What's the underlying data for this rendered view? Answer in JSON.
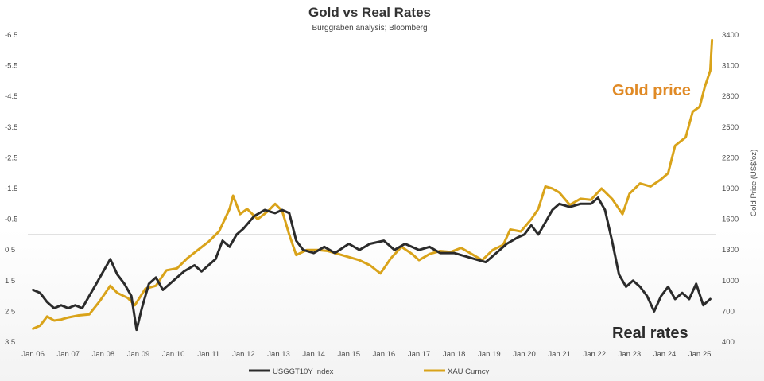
{
  "chart_data": {
    "type": "line",
    "title": "Gold  vs Real Rates",
    "subtitle": "Burggraben analysis; Bloomberg",
    "ylabel": "",
    "y2label": "Gold Price (US$/oz)",
    "xlabel": "",
    "left_axis": {
      "inverted": true,
      "ylim": [
        -6.5,
        3.5
      ],
      "ticks": [
        -6.5,
        -5.5,
        -4.5,
        -3.5,
        -2.5,
        -1.5,
        -0.5,
        0.5,
        1.5,
        2.5,
        3.5
      ],
      "tick_labels": [
        "-6.5",
        "-5.5",
        "-4.5",
        "-3.5",
        "-2.5",
        "-1.5",
        "-0.5",
        "0.5",
        "1.5",
        "2.5",
        "3.5"
      ],
      "zero_line": 0
    },
    "right_axis": {
      "ylim": [
        400,
        3400
      ],
      "ticks": [
        400,
        700,
        1000,
        1300,
        1600,
        1900,
        2200,
        2500,
        2800,
        3100,
        3400
      ],
      "tick_labels": [
        "400",
        "700",
        "1000",
        "1300",
        "1600",
        "1900",
        "2200",
        "2500",
        "2800",
        "3100",
        "3400"
      ]
    },
    "x_ticks": [
      2006,
      2007,
      2008,
      2009,
      2010,
      2011,
      2012,
      2013,
      2014,
      2015,
      2016,
      2017,
      2018,
      2019,
      2020,
      2021,
      2022,
      2023,
      2024,
      2025
    ],
    "x_tick_labels": [
      "Jan 06",
      "Jan 07",
      "Jan 08",
      "Jan 09",
      "Jan 10",
      "Jan 11",
      "Jan 12",
      "Jan 13",
      "Jan 14",
      "Jan 15",
      "Jan 16",
      "Jan 17",
      "Jan 18",
      "Jan 19",
      "Jan 20",
      "Jan 21",
      "Jan 22",
      "Jan 23",
      "Jan 24",
      "Jan 25"
    ],
    "xlim": [
      2005.85,
      2025.45
    ],
    "series": [
      {
        "name": "USGGT10Y Index",
        "axis": "left",
        "color": "#2b2b2b",
        "x": [
          2006.0,
          2006.2,
          2006.4,
          2006.6,
          2006.8,
          2007.0,
          2007.2,
          2007.4,
          2007.6,
          2007.8,
          2008.0,
          2008.2,
          2008.4,
          2008.6,
          2008.8,
          2008.95,
          2009.1,
          2009.3,
          2009.5,
          2009.7,
          2010.0,
          2010.3,
          2010.6,
          2010.8,
          2011.0,
          2011.2,
          2011.4,
          2011.6,
          2011.8,
          2012.0,
          2012.3,
          2012.6,
          2012.9,
          2013.1,
          2013.3,
          2013.5,
          2013.7,
          2014.0,
          2014.3,
          2014.6,
          2015.0,
          2015.3,
          2015.6,
          2016.0,
          2016.3,
          2016.6,
          2017.0,
          2017.3,
          2017.6,
          2018.0,
          2018.3,
          2018.6,
          2018.9,
          2019.2,
          2019.5,
          2019.8,
          2020.0,
          2020.2,
          2020.4,
          2020.6,
          2020.8,
          2021.0,
          2021.3,
          2021.6,
          2021.9,
          2022.1,
          2022.3,
          2022.5,
          2022.7,
          2022.9,
          2023.1,
          2023.3,
          2023.5,
          2023.7,
          2023.9,
          2024.1,
          2024.3,
          2024.5,
          2024.7,
          2024.9,
          2025.1,
          2025.3
        ],
        "values": [
          1.8,
          1.9,
          2.2,
          2.4,
          2.3,
          2.4,
          2.3,
          2.4,
          2.0,
          1.6,
          1.2,
          0.8,
          1.3,
          1.6,
          2.0,
          3.1,
          2.4,
          1.6,
          1.4,
          1.8,
          1.5,
          1.2,
          1.0,
          1.2,
          1.0,
          0.8,
          0.2,
          0.4,
          0.0,
          -0.2,
          -0.6,
          -0.8,
          -0.7,
          -0.8,
          -0.7,
          0.2,
          0.5,
          0.6,
          0.4,
          0.6,
          0.3,
          0.5,
          0.3,
          0.2,
          0.5,
          0.3,
          0.5,
          0.4,
          0.6,
          0.6,
          0.7,
          0.8,
          0.9,
          0.6,
          0.3,
          0.1,
          0.0,
          -0.3,
          0.0,
          -0.4,
          -0.8,
          -1.0,
          -0.9,
          -1.0,
          -1.0,
          -1.2,
          -0.8,
          0.2,
          1.3,
          1.7,
          1.5,
          1.7,
          2.0,
          2.5,
          2.0,
          1.7,
          2.1,
          1.9,
          2.1,
          1.6,
          2.3,
          2.1
        ]
      },
      {
        "name": "XAU Curncy",
        "axis": "right",
        "color": "#d9a31a",
        "x": [
          2006.0,
          2006.2,
          2006.4,
          2006.6,
          2006.8,
          2007.0,
          2007.3,
          2007.6,
          2007.9,
          2008.2,
          2008.4,
          2008.7,
          2008.9,
          2009.2,
          2009.5,
          2009.8,
          2010.1,
          2010.4,
          2010.7,
          2011.0,
          2011.3,
          2011.6,
          2011.7,
          2011.9,
          2012.1,
          2012.4,
          2012.7,
          2012.9,
          2013.1,
          2013.3,
          2013.5,
          2013.8,
          2014.1,
          2014.4,
          2014.7,
          2015.0,
          2015.3,
          2015.6,
          2015.9,
          2016.2,
          2016.5,
          2016.8,
          2017.0,
          2017.3,
          2017.6,
          2017.9,
          2018.2,
          2018.5,
          2018.8,
          2019.1,
          2019.4,
          2019.6,
          2019.9,
          2020.2,
          2020.4,
          2020.6,
          2020.8,
          2021.0,
          2021.3,
          2021.6,
          2021.9,
          2022.2,
          2022.5,
          2022.8,
          2023.0,
          2023.3,
          2023.6,
          2023.9,
          2024.1,
          2024.3,
          2024.6,
          2024.8,
          2025.0,
          2025.15,
          2025.3,
          2025.35
        ],
        "values": [
          530,
          560,
          650,
          610,
          620,
          640,
          660,
          670,
          800,
          950,
          880,
          830,
          760,
          920,
          950,
          1100,
          1120,
          1220,
          1300,
          1380,
          1480,
          1700,
          1830,
          1650,
          1700,
          1600,
          1680,
          1750,
          1680,
          1450,
          1250,
          1300,
          1300,
          1290,
          1260,
          1230,
          1200,
          1150,
          1070,
          1220,
          1330,
          1260,
          1200,
          1260,
          1290,
          1280,
          1320,
          1260,
          1200,
          1300,
          1350,
          1500,
          1480,
          1600,
          1700,
          1920,
          1900,
          1860,
          1740,
          1800,
          1790,
          1900,
          1800,
          1650,
          1850,
          1950,
          1920,
          1990,
          2050,
          2320,
          2400,
          2650,
          2700,
          2900,
          3050,
          3350
        ]
      }
    ],
    "legend": {
      "position": "bottom",
      "entries": [
        "USGGT10Y Index",
        "XAU Curncy"
      ]
    },
    "annotations": [
      {
        "text": "Gold price",
        "color": "#e08a26"
      },
      {
        "text": "Real rates",
        "color": "#2b2b2b"
      }
    ]
  }
}
